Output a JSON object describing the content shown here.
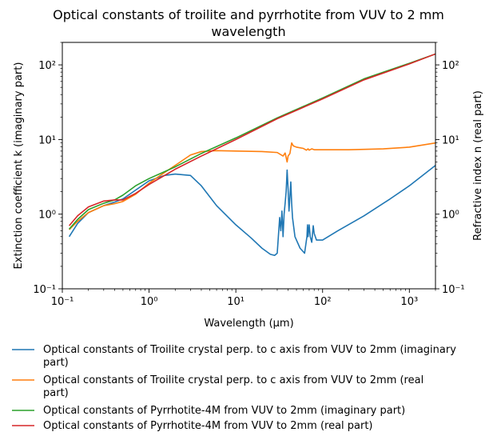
{
  "chart_data": {
    "type": "line",
    "title": "Optical constants of troilite and pyrrhotite from VUV to 2 mm wavelength",
    "xlabel": "Wavelength (μm)",
    "ylabel_left": "Extinction coefficient k (imaginary part)",
    "ylabel_right": "Refractive index n (real part)",
    "xscale": "log",
    "yscale": "log",
    "xlim": [
      0.1,
      2000
    ],
    "ylim": [
      0.1,
      200
    ],
    "x_ticks": [
      "10⁻¹",
      "10⁰",
      "10¹",
      "10²",
      "10³"
    ],
    "y_ticks_left": [
      "10⁻¹",
      "10⁰",
      "10¹",
      "10²"
    ],
    "y_ticks_right": [
      "10⁻¹",
      "10⁰",
      "10¹",
      "10²"
    ],
    "grid": false,
    "legend_position": "below-plot",
    "series": [
      {
        "name": "Optical constants of Troilite crystal perp. to c axis from VUV to 2mm (imaginary part)",
        "color": "#1f77b4",
        "points": [
          [
            0.12,
            0.5
          ],
          [
            0.15,
            0.75
          ],
          [
            0.2,
            1.05
          ],
          [
            0.3,
            1.3
          ],
          [
            0.4,
            1.45
          ],
          [
            0.5,
            1.6
          ],
          [
            0.7,
            2.1
          ],
          [
            1.0,
            2.8
          ],
          [
            1.5,
            3.3
          ],
          [
            2.0,
            3.45
          ],
          [
            3.0,
            3.3
          ],
          [
            4.0,
            2.4
          ],
          [
            6.0,
            1.3
          ],
          [
            10,
            0.72
          ],
          [
            15,
            0.48
          ],
          [
            20,
            0.35
          ],
          [
            25,
            0.29
          ],
          [
            28,
            0.28
          ],
          [
            30,
            0.3
          ],
          [
            32,
            0.9
          ],
          [
            33,
            0.6
          ],
          [
            34,
            1.1
          ],
          [
            35,
            0.5
          ],
          [
            36,
            1.0
          ],
          [
            37,
            1.4
          ],
          [
            38,
            2.0
          ],
          [
            39,
            3.9
          ],
          [
            40,
            2.2
          ],
          [
            41,
            1.1
          ],
          [
            42,
            1.7
          ],
          [
            43,
            2.7
          ],
          [
            44,
            1.4
          ],
          [
            45,
            0.9
          ],
          [
            48,
            0.5
          ],
          [
            55,
            0.35
          ],
          [
            62,
            0.3
          ],
          [
            66,
            0.5
          ],
          [
            67,
            0.72
          ],
          [
            68,
            0.5
          ],
          [
            70,
            0.72
          ],
          [
            72,
            0.5
          ],
          [
            75,
            0.42
          ],
          [
            78,
            0.7
          ],
          [
            80,
            0.55
          ],
          [
            85,
            0.45
          ],
          [
            100,
            0.45
          ],
          [
            150,
            0.6
          ],
          [
            300,
            0.95
          ],
          [
            600,
            1.6
          ],
          [
            1000,
            2.4
          ],
          [
            2000,
            4.5
          ]
        ]
      },
      {
        "name": "Optical constants of Troilite crystal perp. to c axis from VUV to 2mm (real part)",
        "color": "#ff7f0e",
        "points": [
          [
            0.12,
            0.62
          ],
          [
            0.15,
            0.8
          ],
          [
            0.2,
            1.05
          ],
          [
            0.3,
            1.3
          ],
          [
            0.4,
            1.38
          ],
          [
            0.5,
            1.48
          ],
          [
            0.7,
            1.85
          ],
          [
            1.0,
            2.6
          ],
          [
            1.5,
            3.6
          ],
          [
            2.0,
            4.5
          ],
          [
            3.0,
            6.2
          ],
          [
            4.0,
            6.9
          ],
          [
            6.0,
            7.1
          ],
          [
            10,
            7.0
          ],
          [
            20,
            6.9
          ],
          [
            30,
            6.7
          ],
          [
            35,
            6.0
          ],
          [
            37,
            6.6
          ],
          [
            39,
            5.0
          ],
          [
            40,
            6.0
          ],
          [
            42,
            6.5
          ],
          [
            44,
            9.0
          ],
          [
            46,
            8.2
          ],
          [
            50,
            7.9
          ],
          [
            60,
            7.6
          ],
          [
            65,
            7.2
          ],
          [
            68,
            7.5
          ],
          [
            70,
            7.2
          ],
          [
            75,
            7.5
          ],
          [
            80,
            7.3
          ],
          [
            100,
            7.3
          ],
          [
            200,
            7.3
          ],
          [
            500,
            7.5
          ],
          [
            1000,
            7.9
          ],
          [
            2000,
            9.0
          ]
        ]
      },
      {
        "name": "Optical constants of Pyrrhotite-4M from VUV to 2mm (imaginary part)",
        "color": "#2ca02c",
        "points": [
          [
            0.12,
            0.63
          ],
          [
            0.15,
            0.85
          ],
          [
            0.2,
            1.15
          ],
          [
            0.3,
            1.4
          ],
          [
            0.4,
            1.55
          ],
          [
            0.5,
            1.8
          ],
          [
            0.7,
            2.4
          ],
          [
            1.0,
            3.0
          ],
          [
            2.0,
            4.3
          ],
          [
            4.0,
            6.5
          ],
          [
            10,
            10.5
          ],
          [
            30,
            19.5
          ],
          [
            100,
            36
          ],
          [
            300,
            65
          ],
          [
            1000,
            105
          ],
          [
            2000,
            140
          ]
        ]
      },
      {
        "name": "Optical constants of Pyrrhotite-4M from VUV to 2mm (real part)",
        "color": "#d62728",
        "points": [
          [
            0.12,
            0.7
          ],
          [
            0.15,
            0.95
          ],
          [
            0.2,
            1.25
          ],
          [
            0.3,
            1.5
          ],
          [
            0.4,
            1.55
          ],
          [
            0.5,
            1.55
          ],
          [
            0.7,
            1.9
          ],
          [
            1.0,
            2.5
          ],
          [
            2.0,
            4.0
          ],
          [
            4.0,
            6.0
          ],
          [
            10,
            10.0
          ],
          [
            30,
            19.0
          ],
          [
            100,
            35
          ],
          [
            300,
            63
          ],
          [
            1000,
            103
          ],
          [
            2000,
            140
          ]
        ]
      }
    ]
  }
}
